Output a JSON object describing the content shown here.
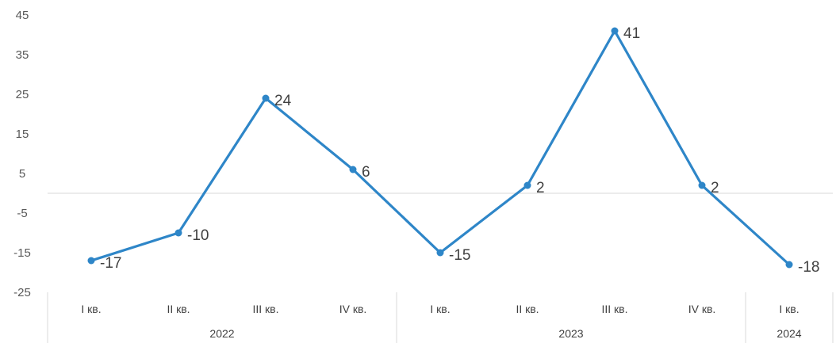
{
  "chart_data": {
    "type": "line",
    "categories": [
      "I кв.",
      "II кв.",
      "III кв.",
      "IV кв.",
      "I кв.",
      "II кв.",
      "III кв.",
      "IV кв.",
      "I кв."
    ],
    "groups": [
      {
        "label": "2022",
        "count": 4
      },
      {
        "label": "2023",
        "count": 4
      },
      {
        "label": "2024",
        "count": 1
      }
    ],
    "series": [
      {
        "values": [
          -17,
          -10,
          24,
          6,
          -15,
          2,
          41,
          2,
          -18
        ]
      }
    ],
    "data_labels": [
      "-17",
      "-10",
      "24",
      "6",
      "-15",
      "2",
      "41",
      "2",
      "-18"
    ],
    "yticks": [
      "45",
      "35",
      "25",
      "15",
      "5",
      "-5",
      "-15",
      "-25"
    ],
    "ylim": [
      -25,
      45
    ],
    "grid": false,
    "legend": "none",
    "colors": {
      "line": "#2E86C8",
      "axis": "#D9D9D9"
    }
  }
}
